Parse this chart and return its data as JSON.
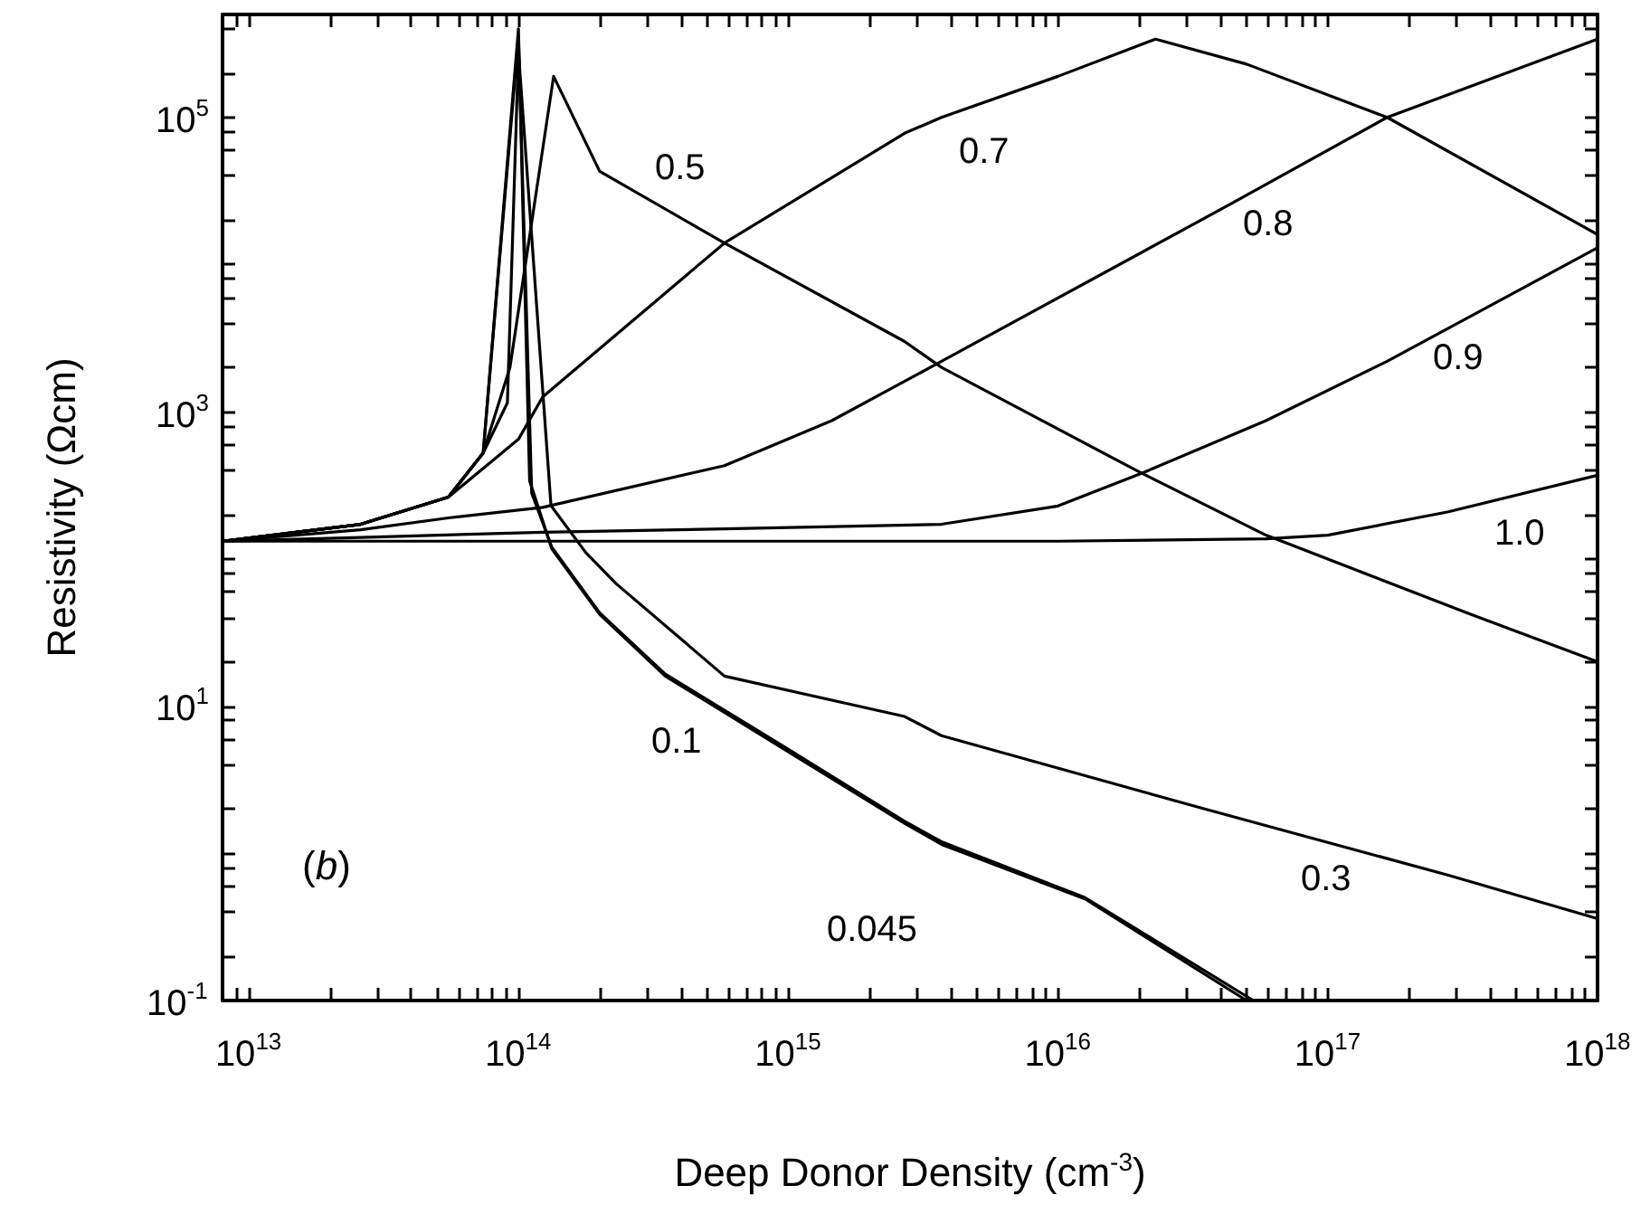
{
  "chart_data": {
    "type": "line",
    "xlabel": "Deep Donor Density (cm$^{-3}$)",
    "ylabel": "Resistivity (Ωcm)",
    "log": "xy",
    "grid": false,
    "marker": "none",
    "line_style": "solid",
    "xlim": [
      8000000000000.0,
      1e+18
    ],
    "ylim": [
      0.1,
      500000.0
    ],
    "xticks": [
      {
        "value": 9000000000000.0,
        "label": null
      },
      {
        "value": 10000000000000.0,
        "label": "10$^{13}$"
      },
      {
        "value": 20000000000000.0,
        "label": null
      },
      {
        "value": 30000000000000.0,
        "label": null
      },
      {
        "value": 40000000000000.0,
        "label": null
      },
      {
        "value": 50000000000000.0,
        "label": null
      },
      {
        "value": 60000000000000.0,
        "label": null
      },
      {
        "value": 70000000000000.0,
        "label": null
      },
      {
        "value": 80000000000000.0,
        "label": null
      },
      {
        "value": 90000000000000.0,
        "label": null
      },
      {
        "value": 100000000000000.0,
        "label": "10$^{14}$"
      },
      {
        "value": 200000000000000.0,
        "label": null
      },
      {
        "value": 300000000000000.0,
        "label": null
      },
      {
        "value": 400000000000000.0,
        "label": null
      },
      {
        "value": 500000000000000.0,
        "label": null
      },
      {
        "value": 600000000000000.0,
        "label": null
      },
      {
        "value": 700000000000000.0,
        "label": null
      },
      {
        "value": 800000000000000.0,
        "label": null
      },
      {
        "value": 900000000000000.0,
        "label": null
      },
      {
        "value": 1000000000000000.0,
        "label": "10$^{15}$"
      },
      {
        "value": 2000000000000000.0,
        "label": null
      },
      {
        "value": 3000000000000000.0,
        "label": null
      },
      {
        "value": 4000000000000000.0,
        "label": null
      },
      {
        "value": 5000000000000000.0,
        "label": null
      },
      {
        "value": 6000000000000000.0,
        "label": null
      },
      {
        "value": 7000000000000000.0,
        "label": null
      },
      {
        "value": 8000000000000000.0,
        "label": null
      },
      {
        "value": 9000000000000000.0,
        "label": null
      },
      {
        "value": 1e+16,
        "label": "10$^{16}$"
      },
      {
        "value": 2e+16,
        "label": null
      },
      {
        "value": 3e+16,
        "label": null
      },
      {
        "value": 4e+16,
        "label": null
      },
      {
        "value": 5e+16,
        "label": null
      },
      {
        "value": 6e+16,
        "label": null
      },
      {
        "value": 7e+16,
        "label": null
      },
      {
        "value": 8e+16,
        "label": null
      },
      {
        "value": 9e+16,
        "label": null
      },
      {
        "value": 1e+17,
        "label": "10$^{17}$"
      },
      {
        "value": 2e+17,
        "label": null
      },
      {
        "value": 3e+17,
        "label": null
      },
      {
        "value": 4e+17,
        "label": null
      },
      {
        "value": 5e+17,
        "label": null
      },
      {
        "value": 6e+17,
        "label": null
      },
      {
        "value": 7e+17,
        "label": null
      },
      {
        "value": 8e+17,
        "label": null
      },
      {
        "value": 9e+17,
        "label": null
      },
      {
        "value": 1e+18,
        "label": "10$^{18}$"
      }
    ],
    "yticks": [
      {
        "value": 0.1,
        "label": "10$^{-1}$"
      },
      {
        "value": 0.2,
        "label": null
      },
      {
        "value": 0.4,
        "label": null
      },
      {
        "value": 0.6,
        "label": null
      },
      {
        "value": 0.8,
        "label": null
      },
      {
        "value": 1,
        "label": null
      },
      {
        "value": 2,
        "label": null
      },
      {
        "value": 4,
        "label": null
      },
      {
        "value": 6,
        "label": null
      },
      {
        "value": 8,
        "label": null
      },
      {
        "value": 10,
        "label": "10$^{1}$"
      },
      {
        "value": 20,
        "label": null
      },
      {
        "value": 40,
        "label": null
      },
      {
        "value": 60,
        "label": null
      },
      {
        "value": 80,
        "label": null
      },
      {
        "value": 100,
        "label": null
      },
      {
        "value": 200,
        "label": null
      },
      {
        "value": 400,
        "label": null
      },
      {
        "value": 600,
        "label": null
      },
      {
        "value": 800,
        "label": null
      },
      {
        "value": 1000,
        "label": "10$^{3}$"
      },
      {
        "value": 2000,
        "label": null
      },
      {
        "value": 4000,
        "label": null
      },
      {
        "value": 6000,
        "label": null
      },
      {
        "value": 8000,
        "label": null
      },
      {
        "value": 10000,
        "label": null
      },
      {
        "value": 20000,
        "label": null
      },
      {
        "value": 40000,
        "label": null
      },
      {
        "value": 60000,
        "label": null
      },
      {
        "value": 80000,
        "label": null
      },
      {
        "value": 100000,
        "label": "10$^{5}$"
      },
      {
        "value": 200000,
        "label": null
      },
      {
        "value": 400000,
        "label": null
      }
    ],
    "annotations": [
      "(b)"
    ],
    "series": [
      {
        "name": "0.045",
        "color": "#000000",
        "x": [
          8000000000000.0,
          26000000000000.0,
          55000000000000.0,
          74000000000000.0,
          100000000000000.0,
          110000000000000.0,
          133000000000000.0,
          200000000000000.0,
          350000000000000.0,
          950000000000000.0,
          2700000000000000.0,
          3700000000000000.0,
          1.26e+16,
          5e+16
        ],
        "values": [
          132,
          172,
          263,
          525,
          400000,
          340,
          117,
          42,
          16,
          5.2,
          1.6,
          1.15,
          0.49,
          0.1
        ]
      },
      {
        "name": "0.1",
        "color": "#000000",
        "x": [
          8000000000000.0,
          26000000000000.0,
          55000000000000.0,
          74000000000000.0,
          100000000000000.0,
          112000000000000.0,
          133000000000000.0,
          200000000000000.0,
          350000000000000.0,
          950000000000000.0,
          2700000000000000.0,
          3700000000000000.0,
          1.26e+16,
          5.3e+16
        ],
        "values": [
          132,
          172,
          263,
          525,
          350000,
          280,
          120,
          43,
          16.5,
          5.4,
          1.65,
          1.2,
          0.5,
          0.1
        ]
      },
      {
        "name": "0.3",
        "color": "#000000",
        "x": [
          8000000000000.0,
          26000000000000.0,
          55000000000000.0,
          74000000000000.0,
          91000000000000.0,
          100000000000000.0,
          132000000000000.0,
          178000000000000.0,
          230000000000000.0,
          580000000000000.0,
          2700000000000000.0,
          3700000000000000.0,
          3.5e+16,
          2.8e+17,
          1e+18
        ],
        "values": [
          132,
          172,
          263,
          525,
          1150,
          280000,
          230,
          110,
          68,
          16,
          8.5,
          6.3,
          2.0,
          0.71,
          0.36
        ]
      },
      {
        "name": "0.5",
        "color": "#000000",
        "x": [
          8000000000000.0,
          26000000000000.0,
          55000000000000.0,
          74000000000000.0,
          93000000000000.0,
          135000000000000.0,
          200000000000000.0,
          580000000000000.0,
          2700000000000000.0,
          3700000000000000.0,
          2e+16,
          5.9e+16,
          3.4e+17,
          1e+18
        ],
        "values": [
          132,
          172,
          263,
          525,
          2000,
          190000,
          43000,
          14000,
          3000,
          2000,
          390,
          145,
          42,
          20
        ]
      },
      {
        "name": "0.7",
        "color": "#000000",
        "x": [
          8000000000000.0,
          26000000000000.0,
          55000000000000.0,
          100000000000000.0,
          123000000000000.0,
          580000000000000.0,
          2700000000000000.0,
          3700000000000000.0,
          1e+16,
          2.3e+16,
          5e+16,
          1.66e+17,
          1e+18
        ],
        "values": [
          132,
          172,
          263,
          650,
          1260,
          14000,
          78000,
          100000,
          190000,
          340000,
          230000,
          100000,
          16000
        ]
      },
      {
        "name": "0.8",
        "color": "#000000",
        "x": [
          8000000000000.0,
          26000000000000.0,
          55000000000000.0,
          123000000000000.0,
          580000000000000.0,
          1450000000000000.0,
          3700000000000000.0,
          4.4e+16,
          1.66e+17,
          1e+18
        ],
        "values": [
          132,
          158,
          190,
          224,
          430,
          870,
          2200,
          26000,
          100000,
          340000
        ]
      },
      {
        "name": "0.9",
        "color": "#000000",
        "x": [
          8000000000000.0,
          26000000000000.0,
          123000000000000.0,
          580000000000000.0,
          3700000000000000.0,
          1e+16,
          2.1e+16,
          5.9e+16,
          1.66e+17,
          1e+18
        ],
        "values": [
          132,
          140,
          152,
          160,
          172,
          229,
          390,
          870,
          2200,
          13000
        ]
      },
      {
        "name": "1.0",
        "color": "#000000",
        "x": [
          8000000000000.0,
          1e+16,
          5.9e+16,
          1e+17,
          2.8e+17,
          1e+18
        ],
        "values": [
          132,
          132,
          137,
          145,
          209,
          370
        ]
      }
    ]
  }
}
